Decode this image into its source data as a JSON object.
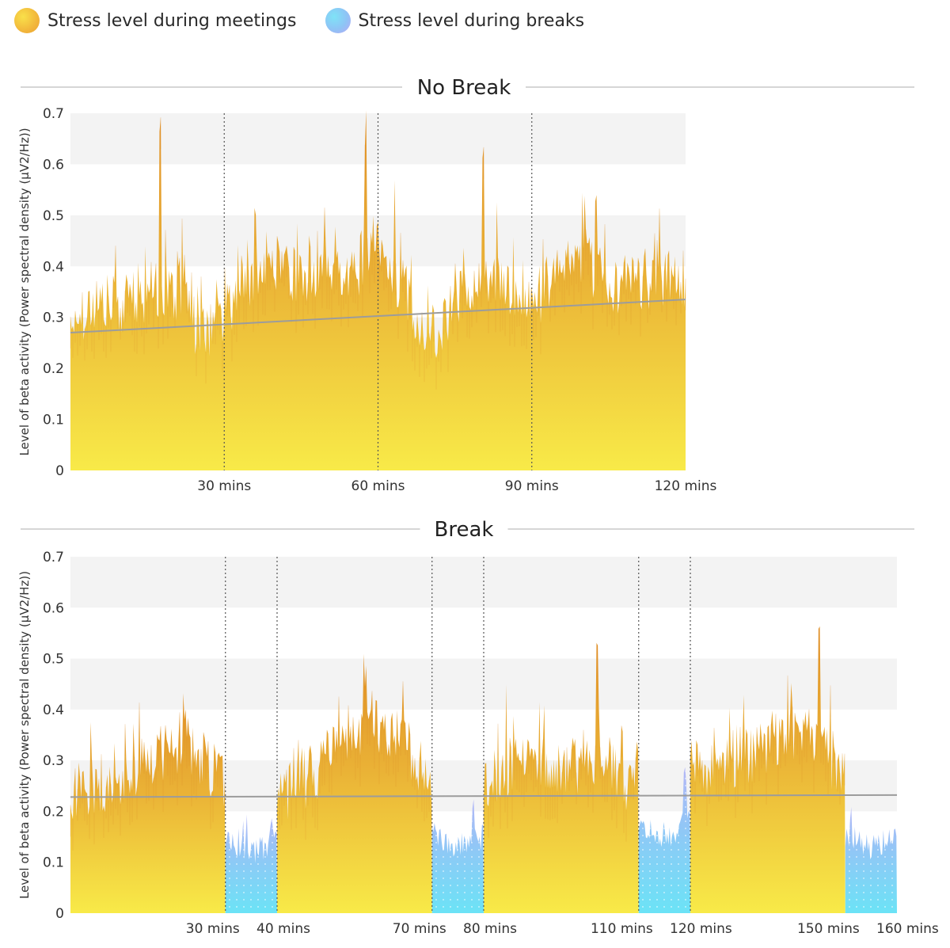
{
  "legend": {
    "meeting_label": "Stress level during meetings",
    "break_label": "Stress level during breaks"
  },
  "colors": {
    "meeting_top": "#e59a2e",
    "meeting_bottom": "#f8ea48",
    "meeting_spike": "#d88424",
    "break_top": "#a9c3f6",
    "break_bottom": "#6fe1f7",
    "trend": "#9c9c9c",
    "band": "#f3f3f3"
  },
  "chart_data": [
    {
      "type": "area",
      "title": "No Break",
      "ylabel": "Level of beta activity (Power spectral density (µV2/Hz))",
      "xlabel": "",
      "xlim": [
        0,
        120
      ],
      "ylim": [
        0,
        0.7
      ],
      "yticks": [
        0,
        0.1,
        0.2,
        0.3,
        0.4,
        0.5,
        0.6,
        0.7
      ],
      "ytick_labels": [
        "0",
        "0.1",
        "0.2",
        "0.3",
        "0.4",
        "0.5",
        "0.6",
        "0.7"
      ],
      "xticks": [
        30,
        60,
        90,
        120
      ],
      "xtick_labels": [
        "30 mins",
        "60 mins",
        "90 mins",
        "120 mins"
      ],
      "dividers": [
        30,
        60,
        90
      ],
      "grid": "alternating horizontal bands",
      "segments": [
        {
          "series": "meeting",
          "start": 0,
          "end": 120
        }
      ],
      "approx_envelope": {
        "x": [
          0,
          5,
          10,
          15,
          20,
          25,
          30,
          35,
          40,
          45,
          50,
          55,
          60,
          65,
          70,
          75,
          80,
          85,
          90,
          95,
          100,
          105,
          110,
          115,
          120
        ],
        "y": [
          0.3,
          0.33,
          0.32,
          0.35,
          0.36,
          0.27,
          0.3,
          0.38,
          0.41,
          0.38,
          0.41,
          0.39,
          0.43,
          0.36,
          0.25,
          0.33,
          0.38,
          0.35,
          0.33,
          0.38,
          0.41,
          0.37,
          0.36,
          0.38,
          0.37
        ],
        "peaks": [
          {
            "x": 17.5,
            "y": 0.65
          },
          {
            "x": 57.5,
            "y": 0.66
          },
          {
            "x": 80.5,
            "y": 0.62
          },
          {
            "x": 102.5,
            "y": 0.55
          }
        ]
      },
      "trend_line": {
        "x": [
          0,
          120
        ],
        "y": [
          0.27,
          0.335
        ]
      }
    },
    {
      "type": "area",
      "title": "Break",
      "ylabel": "Level of beta activity (Power spectral density (µV2/Hz))",
      "xlabel": "",
      "xlim": [
        0,
        160
      ],
      "ylim": [
        0,
        0.7
      ],
      "yticks": [
        0,
        0.1,
        0.2,
        0.3,
        0.4,
        0.5,
        0.6,
        0.7
      ],
      "ytick_labels": [
        "0",
        "0.1",
        "0.2",
        "0.3",
        "0.4",
        "0.5",
        "0.6",
        "0.7"
      ],
      "xticks": [
        30,
        40,
        70,
        80,
        110,
        120,
        150,
        160
      ],
      "xtick_labels": [
        "30 mins",
        "40 mins",
        "70 mins",
        "80 mins",
        "110 mins",
        "120 mins",
        "150 mins",
        "160 mins"
      ],
      "dividers": [
        30,
        40,
        70,
        80,
        110,
        120
      ],
      "grid": "alternating horizontal bands",
      "segments": [
        {
          "series": "meeting",
          "start": 0,
          "end": 30,
          "base": [
            0.24,
            0.26,
            0.3,
            0.33,
            0.25
          ],
          "peak": {
            "x": 22,
            "y": 0.44
          }
        },
        {
          "series": "break",
          "start": 30,
          "end": 40,
          "base": [
            0.14,
            0.12,
            0.14
          ],
          "peak": {
            "x": 39,
            "y": 0.17
          }
        },
        {
          "series": "meeting",
          "start": 40,
          "end": 70,
          "base": [
            0.22,
            0.28,
            0.37,
            0.35,
            0.27
          ],
          "peak": {
            "x": 57,
            "y": 0.5
          }
        },
        {
          "series": "break",
          "start": 70,
          "end": 80,
          "base": [
            0.15,
            0.13,
            0.15
          ],
          "peak": {
            "x": 78,
            "y": 0.2
          }
        },
        {
          "series": "meeting",
          "start": 80,
          "end": 110,
          "base": [
            0.26,
            0.3,
            0.28,
            0.31,
            0.24
          ],
          "peak": {
            "x": 102,
            "y": 0.53
          }
        },
        {
          "series": "break",
          "start": 110,
          "end": 120,
          "base": [
            0.18,
            0.14,
            0.19
          ],
          "peak": {
            "x": 119,
            "y": 0.27
          }
        },
        {
          "series": "meeting",
          "start": 120,
          "end": 150,
          "base": [
            0.28,
            0.3,
            0.33,
            0.35,
            0.26
          ],
          "peak": {
            "x": 145,
            "y": 0.51
          }
        },
        {
          "series": "break",
          "start": 150,
          "end": 160,
          "base": [
            0.15,
            0.13,
            0.15
          ],
          "peak": {
            "x": 151,
            "y": 0.2
          }
        }
      ],
      "trend_line": {
        "x": [
          0,
          160
        ],
        "y": [
          0.228,
          0.232
        ]
      }
    }
  ]
}
